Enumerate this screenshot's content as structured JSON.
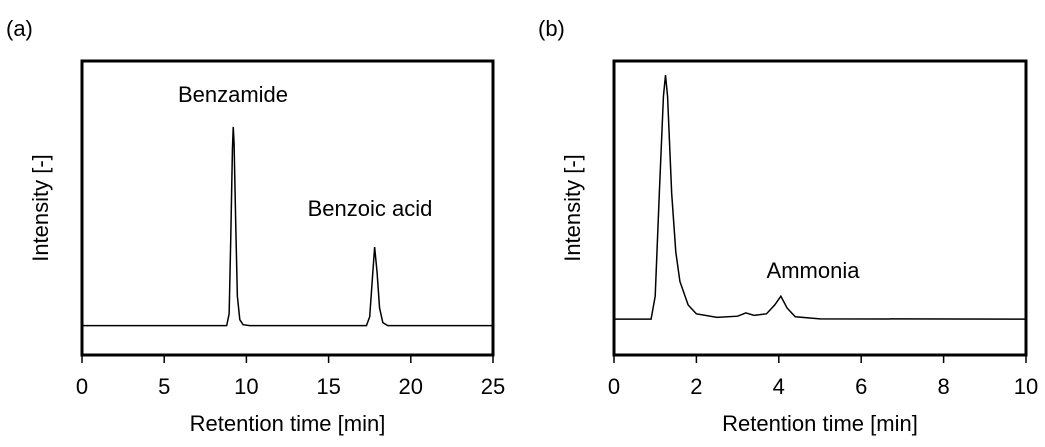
{
  "chart_data": [
    {
      "type": "line",
      "panel": "(a)",
      "x_label": "Retention time [min]",
      "y_label": "Intensity [-]",
      "annotations": [
        "Benzamide",
        "Benzoic acid"
      ],
      "xlim": [
        0,
        25
      ],
      "xticks": [
        0,
        5,
        10,
        15,
        20,
        25
      ],
      "ylim": [
        0,
        100
      ],
      "color": "#000000",
      "x": [
        0,
        8.8,
        8.95,
        9.05,
        9.15,
        9.2,
        9.25,
        9.35,
        9.45,
        9.6,
        9.8,
        10.2,
        17.3,
        17.5,
        17.65,
        17.8,
        17.95,
        18.1,
        18.3,
        18.6,
        25
      ],
      "values": [
        10,
        10,
        14,
        40,
        70,
        77.6,
        72,
        45,
        20,
        12,
        10.3,
        10,
        10,
        13,
        25,
        36.7,
        28,
        16,
        11,
        10,
        10
      ]
    },
    {
      "type": "line",
      "panel": "(b)",
      "x_label": "Retention time [min]",
      "y_label": "Intensity [-]",
      "annotations": [
        "Ammonia"
      ],
      "xlim": [
        0,
        10
      ],
      "xticks": [
        0,
        2,
        4,
        6,
        8,
        10
      ],
      "ylim": [
        0,
        100
      ],
      "color": "#000000",
      "x": [
        0,
        0.9,
        1.0,
        1.1,
        1.2,
        1.25,
        1.3,
        1.4,
        1.5,
        1.6,
        1.8,
        2.0,
        2.5,
        3.0,
        3.2,
        3.4,
        3.7,
        3.9,
        4.05,
        4.2,
        4.4,
        5.0,
        10
      ],
      "values": [
        12.2,
        12.2,
        20,
        55,
        88,
        95.2,
        88,
        55,
        35,
        25,
        17,
        14,
        12.8,
        13.2,
        14.3,
        13.5,
        14,
        17,
        20,
        16,
        13,
        12.3,
        12.2
      ]
    }
  ]
}
